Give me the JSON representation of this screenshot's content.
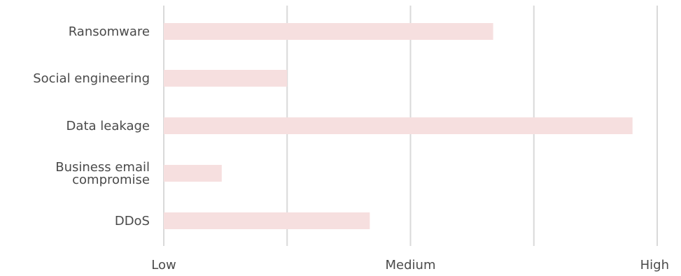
{
  "chart_data": {
    "type": "bar",
    "orientation": "horizontal",
    "title": "",
    "xlabel": "",
    "ylabel": "",
    "categories": [
      [
        "Ransomware"
      ],
      [
        "Social engineering"
      ],
      [
        "Data leakage"
      ],
      [
        "Business email",
        "compromise"
      ],
      [
        "DDoS"
      ]
    ],
    "values": [
      2.67,
      1.0,
      3.8,
      0.47,
      1.67
    ],
    "xlim": [
      0,
      4
    ],
    "x_ticks": [
      {
        "value": 0,
        "label": "Low"
      },
      {
        "value": 1,
        "label": ""
      },
      {
        "value": 2,
        "label": "Medium"
      },
      {
        "value": 3,
        "label": ""
      },
      {
        "value": 4,
        "label": "High"
      }
    ],
    "grid": "vertical",
    "bar_color": "#f6dfdf",
    "grid_color": "#d9d9d9",
    "text_color": "#4a4a4a"
  }
}
